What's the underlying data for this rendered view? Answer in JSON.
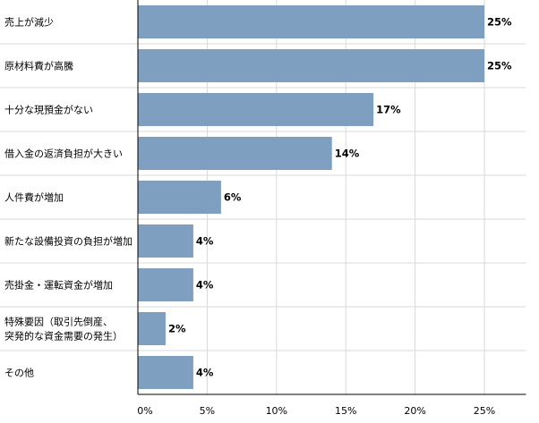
{
  "chart_data": {
    "type": "bar",
    "orientation": "horizontal",
    "categories": [
      [
        "売上が減少"
      ],
      [
        "原材料費が高騰"
      ],
      [
        "十分な現預金がない"
      ],
      [
        "借入金の返済負担が大きい"
      ],
      [
        "人件費が増加"
      ],
      [
        "新たな設備投資の負担が増加"
      ],
      [
        "売掛金・運転資金が増加"
      ],
      [
        "特殊要因（取引先倒産、",
        "突発的な資金需要の発生）"
      ],
      [
        "その他"
      ]
    ],
    "values": [
      25,
      25,
      17,
      14,
      6,
      4,
      4,
      2,
      4
    ],
    "value_labels": [
      "25%",
      "25%",
      "17%",
      "14%",
      "6%",
      "4%",
      "4%",
      "2%",
      "4%"
    ],
    "x_ticks": [
      0,
      5,
      10,
      15,
      20,
      25
    ],
    "x_tick_labels": [
      "0%",
      "5%",
      "10%",
      "15%",
      "20%",
      "25%"
    ],
    "xlim": [
      0,
      28
    ],
    "bar_color": "#7f9fc1",
    "gridlines": true
  }
}
